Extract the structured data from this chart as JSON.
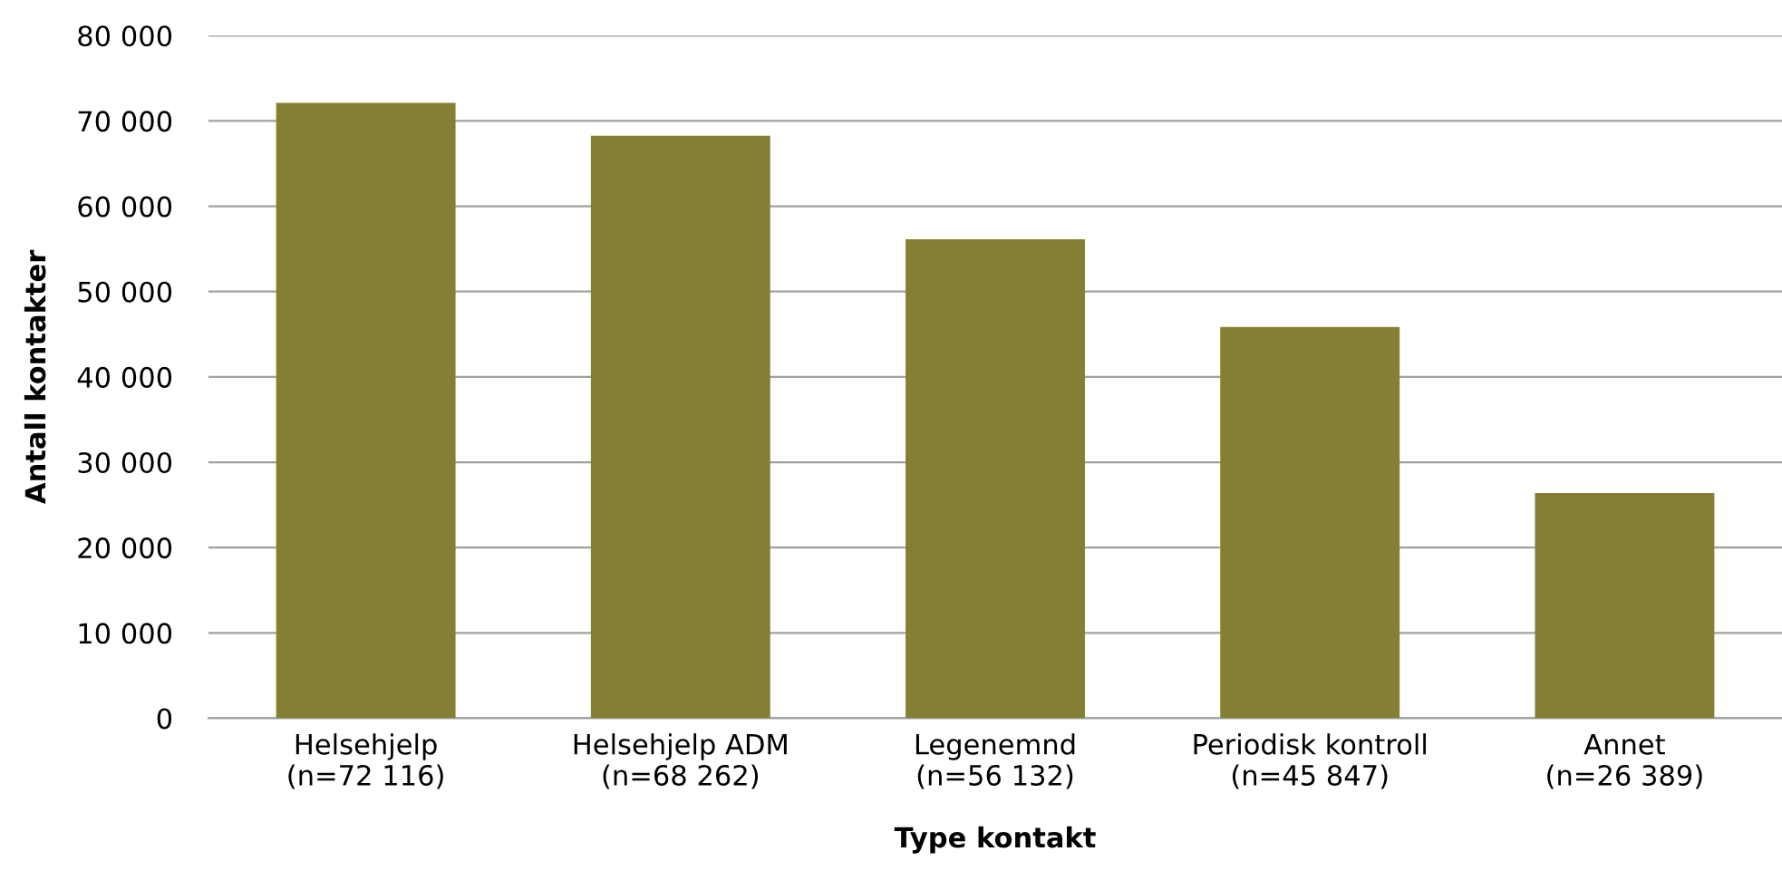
{
  "chart_data": {
    "type": "bar",
    "xlabel": "Type kontakt",
    "ylabel": "Antall kontakter",
    "categories": [
      "Helsehjelp\n(n=72 116)",
      "Helsehjelp ADM\n(n=68 262)",
      "Legenemnd\n(n=56 132)",
      "Periodisk kontroll\n(n=45 847)",
      "Annet\n(n=26 389)"
    ],
    "values": [
      72116,
      68262,
      56132,
      45847,
      26389
    ],
    "color": "#857f33",
    "ylim": [
      0,
      80000
    ],
    "yticks": [
      0,
      {
        "value": 10000,
        "label": "10 000"
      },
      {
        "value": 20000,
        "label": "20 000"
      },
      {
        "value": 30000,
        "label": "30 000"
      },
      {
        "value": 40000,
        "label": "40 000"
      },
      {
        "value": 50000,
        "label": "50 000"
      },
      {
        "value": 60000,
        "label": "60 000"
      },
      {
        "value": 70000,
        "label": "70 000"
      },
      {
        "value": 80000,
        "label": "80 000"
      }
    ],
    "grid": "y"
  }
}
